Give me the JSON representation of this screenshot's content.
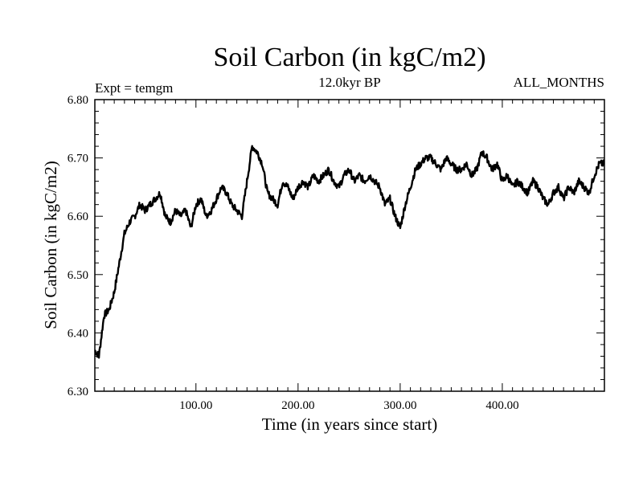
{
  "chart_data": {
    "type": "line",
    "title": "Soil Carbon (in kgC/m2)",
    "subtitle_left": "Expt = temgm",
    "subtitle_center": "12.0kyr BP",
    "subtitle_right": "ALL_MONTHS",
    "xlabel": "Time (in years since start)",
    "ylabel": "Soil Carbon (in kgC/m2)",
    "xlim": [
      1,
      500
    ],
    "ylim": [
      6.3,
      6.8
    ],
    "x_ticks": [
      100,
      200,
      300,
      400
    ],
    "x_tick_labels": [
      "100.00",
      "200.00",
      "300.00",
      "400.00"
    ],
    "y_ticks": [
      6.3,
      6.4,
      6.5,
      6.6,
      6.7,
      6.8
    ],
    "y_tick_labels": [
      "6.30",
      "6.40",
      "6.50",
      "6.60",
      "6.70",
      "6.80"
    ],
    "series": [
      {
        "name": "Soil Carbon",
        "color": "#000000",
        "x": [
          1,
          5,
          10,
          15,
          20,
          25,
          30,
          35,
          40,
          45,
          50,
          55,
          60,
          65,
          70,
          75,
          80,
          85,
          90,
          95,
          100,
          105,
          110,
          115,
          120,
          125,
          130,
          135,
          140,
          145,
          150,
          155,
          160,
          165,
          170,
          175,
          180,
          185,
          190,
          195,
          200,
          205,
          210,
          215,
          220,
          225,
          230,
          235,
          240,
          245,
          250,
          255,
          260,
          265,
          270,
          275,
          280,
          285,
          290,
          295,
          300,
          305,
          310,
          315,
          320,
          325,
          330,
          335,
          340,
          345,
          350,
          355,
          360,
          365,
          370,
          375,
          380,
          385,
          390,
          395,
          400,
          405,
          410,
          415,
          420,
          425,
          430,
          435,
          440,
          445,
          450,
          455,
          460,
          465,
          470,
          475,
          480,
          485,
          490,
          495,
          500
        ],
        "values": [
          6.37,
          6.36,
          6.43,
          6.44,
          6.47,
          6.52,
          6.57,
          6.59,
          6.6,
          6.62,
          6.61,
          6.62,
          6.63,
          6.64,
          6.6,
          6.59,
          6.61,
          6.6,
          6.61,
          6.58,
          6.62,
          6.63,
          6.6,
          6.61,
          6.63,
          6.65,
          6.64,
          6.62,
          6.61,
          6.6,
          6.66,
          6.72,
          6.71,
          6.69,
          6.64,
          6.63,
          6.62,
          6.66,
          6.65,
          6.63,
          6.65,
          6.66,
          6.65,
          6.67,
          6.66,
          6.67,
          6.68,
          6.66,
          6.65,
          6.67,
          6.68,
          6.66,
          6.67,
          6.66,
          6.67,
          6.66,
          6.65,
          6.62,
          6.63,
          6.6,
          6.58,
          6.62,
          6.65,
          6.68,
          6.69,
          6.7,
          6.7,
          6.69,
          6.68,
          6.7,
          6.69,
          6.68,
          6.68,
          6.69,
          6.67,
          6.68,
          6.71,
          6.7,
          6.68,
          6.69,
          6.66,
          6.67,
          6.65,
          6.66,
          6.65,
          6.64,
          6.66,
          6.65,
          6.63,
          6.62,
          6.64,
          6.65,
          6.63,
          6.65,
          6.64,
          6.66,
          6.65,
          6.64,
          6.67,
          6.69,
          6.69
        ]
      }
    ]
  }
}
